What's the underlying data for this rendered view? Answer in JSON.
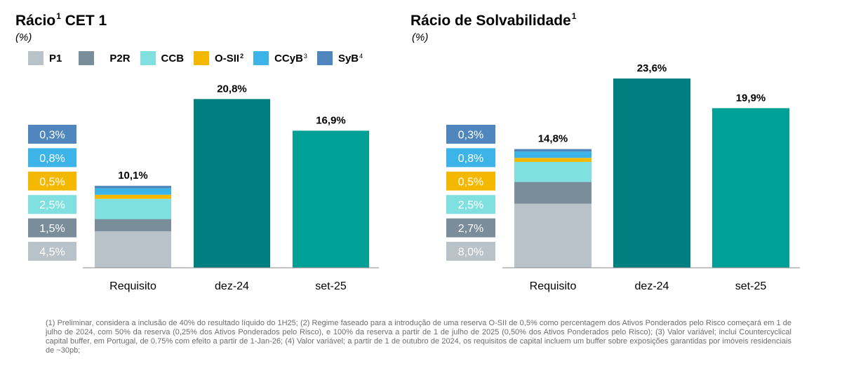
{
  "legend": [
    {
      "label": "P1",
      "sup": "",
      "color": "#b9c2c9"
    },
    {
      "label": "P2R",
      "sup": "",
      "color": "#7a8d9b"
    },
    {
      "label": "CCB",
      "sup": "",
      "color": "#80e0e0"
    },
    {
      "label": "O-SII",
      "sup": "2",
      "color": "#f5b800"
    },
    {
      "label": "CCyB",
      "sup": "3",
      "color": "#3db4e8"
    },
    {
      "label": "SyB",
      "sup": "4",
      "color": "#4f86bd"
    }
  ],
  "colors": {
    "dec24": "#007f80",
    "sep25": "#00a096"
  },
  "chart_data": [
    {
      "type": "bar",
      "title": "Rácio",
      "title_sup": "1",
      "title_suffix": "CET 1",
      "unit": "(%)",
      "categories": [
        "Requisito",
        "dez-24",
        "set-25"
      ],
      "totals": [
        10.1,
        20.8,
        16.9
      ],
      "total_labels": [
        "10,1%",
        "20,8%",
        "16,9%"
      ],
      "stack": [
        {
          "name": "P1",
          "value": 4.5,
          "label": "4,5%"
        },
        {
          "name": "P2R",
          "value": 1.5,
          "label": "1,5%"
        },
        {
          "name": "CCB",
          "value": 2.5,
          "label": "2,5%"
        },
        {
          "name": "O-SII",
          "value": 0.5,
          "label": "0,5%"
        },
        {
          "name": "CCyB",
          "value": 0.8,
          "label": "0,8%"
        },
        {
          "name": "SyB",
          "value": 0.3,
          "label": "0,3%"
        }
      ],
      "ylim": [
        0,
        21
      ]
    },
    {
      "type": "bar",
      "title": "Rácio de Solvabilidade",
      "title_sup": "1",
      "title_suffix": "",
      "unit": "(%)",
      "categories": [
        "Requisito",
        "dez-24",
        "set-25"
      ],
      "totals": [
        14.8,
        23.6,
        19.9
      ],
      "total_labels": [
        "14,8%",
        "23,6%",
        "19,9%"
      ],
      "stack": [
        {
          "name": "P1",
          "value": 8.0,
          "label": "8,0%"
        },
        {
          "name": "P2R",
          "value": 2.7,
          "label": "2,7%"
        },
        {
          "name": "CCB",
          "value": 2.5,
          "label": "2,5%"
        },
        {
          "name": "O-SII",
          "value": 0.5,
          "label": "0,5%"
        },
        {
          "name": "CCyB",
          "value": 0.8,
          "label": "0,8%"
        },
        {
          "name": "SyB",
          "value": 0.3,
          "label": "0,3%"
        }
      ],
      "ylim": [
        0,
        23.6
      ]
    }
  ],
  "footnote": "(1) Preliminar, considera a inclusão de 40% do resultado líquido do 1H25; (2) Regime faseado para a introdução de uma reserva O-SII de 0,5% como percentagem dos Ativos Ponderados pelo Risco começará em 1 de julho de 2024, com 50% da reserva (0,25% dos Ativos Ponderados pelo Risco), e 100% da reserva a partir de 1 de julho de 2025 (0,50% dos Ativos Ponderados pelo Risco); (3) Valor variável; inclui Countercyclical capital buffer, em Portugal, de 0.75% com efeito a partir de 1-Jan-26; (4) Valor variável; a partir de 1 de outubro de 2024, os requisitos de capital incluem um buffer sobre exposições garantidas por imóveis residenciais de ~30pb;"
}
